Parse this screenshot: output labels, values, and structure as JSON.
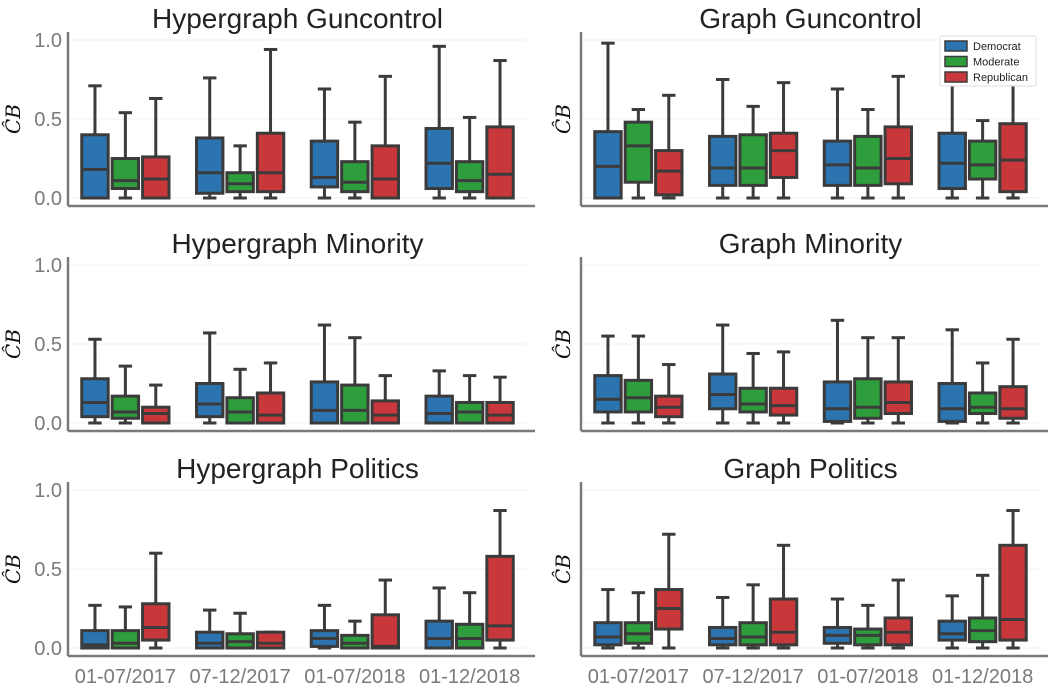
{
  "chart_data": {
    "type": "box",
    "layout": "3 rows x 2 columns, shared x and y axes",
    "y_axis": {
      "label": "ĈB",
      "ylim": [
        0,
        1.0
      ],
      "ticks": [
        "0.0",
        "0.5",
        "1.0"
      ],
      "grid": true
    },
    "x_axis": {
      "categories": [
        "01-07/2017",
        "07-12/2017",
        "01-07/2018",
        "01-12/2018"
      ]
    },
    "legend": {
      "placement": "top-right of Graph Guncontrol",
      "entries": [
        {
          "name": "Democrat",
          "color": "#2b74b0"
        },
        {
          "name": "Moderate",
          "color": "#2e9e3c"
        },
        {
          "name": "Republican",
          "color": "#c8373a"
        }
      ]
    },
    "panels": [
      {
        "title": "Hypergraph Guncontrol",
        "groups": [
          {
            "category": "01-07/2017",
            "boxes": [
              [
                0,
                0,
                0.18,
                0.4,
                0.71
              ],
              [
                0,
                0.06,
                0.11,
                0.25,
                0.54
              ],
              [
                0,
                0,
                0.12,
                0.26,
                0.63
              ]
            ]
          },
          {
            "category": "07-12/2017",
            "boxes": [
              [
                0,
                0.03,
                0.16,
                0.38,
                0.76
              ],
              [
                0,
                0.04,
                0.09,
                0.16,
                0.33
              ],
              [
                0,
                0.04,
                0.16,
                0.41,
                0.94
              ]
            ]
          },
          {
            "category": "01-07/2018",
            "boxes": [
              [
                0,
                0.07,
                0.13,
                0.36,
                0.69
              ],
              [
                0,
                0.04,
                0.1,
                0.23,
                0.48
              ],
              [
                0,
                0,
                0.12,
                0.33,
                0.77
              ]
            ]
          },
          {
            "category": "01-12/2018",
            "boxes": [
              [
                0,
                0.06,
                0.22,
                0.44,
                0.96
              ],
              [
                0,
                0.04,
                0.11,
                0.23,
                0.51
              ],
              [
                0,
                0,
                0.15,
                0.45,
                0.87
              ]
            ]
          }
        ]
      },
      {
        "title": "Graph Guncontrol",
        "groups": [
          {
            "category": "01-07/2017",
            "boxes": [
              [
                0,
                0,
                0.2,
                0.42,
                0.98
              ],
              [
                0,
                0.1,
                0.33,
                0.48,
                0.56
              ],
              [
                0,
                0.02,
                0.17,
                0.3,
                0.65
              ]
            ]
          },
          {
            "category": "07-12/2017",
            "boxes": [
              [
                0,
                0.08,
                0.19,
                0.39,
                0.75
              ],
              [
                0,
                0.08,
                0.19,
                0.4,
                0.58
              ],
              [
                0,
                0.13,
                0.3,
                0.41,
                0.73
              ]
            ]
          },
          {
            "category": "01-07/2018",
            "boxes": [
              [
                0,
                0.08,
                0.21,
                0.36,
                0.69
              ],
              [
                0,
                0.08,
                0.19,
                0.39,
                0.56
              ],
              [
                0,
                0.09,
                0.25,
                0.45,
                0.77
              ]
            ]
          },
          {
            "category": "01-12/2018",
            "boxes": [
              [
                0,
                0.06,
                0.22,
                0.41,
                0.96
              ],
              [
                0,
                0.12,
                0.21,
                0.36,
                0.49
              ],
              [
                0,
                0.04,
                0.24,
                0.47,
                0.97
              ]
            ]
          }
        ]
      },
      {
        "title": "Hypergraph Minority",
        "groups": [
          {
            "category": "01-07/2017",
            "boxes": [
              [
                0,
                0.04,
                0.13,
                0.28,
                0.53
              ],
              [
                0,
                0.03,
                0.07,
                0.17,
                0.36
              ],
              [
                0,
                0,
                0.06,
                0.1,
                0.24
              ]
            ]
          },
          {
            "category": "07-12/2017",
            "boxes": [
              [
                0,
                0.04,
                0.12,
                0.25,
                0.57
              ],
              [
                0,
                0,
                0.07,
                0.16,
                0.34
              ],
              [
                0,
                0,
                0.05,
                0.19,
                0.38
              ]
            ]
          },
          {
            "category": "01-07/2018",
            "boxes": [
              [
                0,
                0,
                0.08,
                0.26,
                0.62
              ],
              [
                0,
                0,
                0.08,
                0.24,
                0.54
              ],
              [
                0,
                0,
                0.05,
                0.14,
                0.3
              ]
            ]
          },
          {
            "category": "01-12/2018",
            "boxes": [
              [
                0,
                0,
                0.06,
                0.17,
                0.33
              ],
              [
                0,
                0,
                0.07,
                0.13,
                0.3
              ],
              [
                0,
                0,
                0.05,
                0.13,
                0.29
              ]
            ]
          }
        ]
      },
      {
        "title": "Graph Minority",
        "groups": [
          {
            "category": "01-07/2017",
            "boxes": [
              [
                0,
                0.07,
                0.15,
                0.3,
                0.55
              ],
              [
                0,
                0.07,
                0.16,
                0.27,
                0.55
              ],
              [
                0,
                0.04,
                0.1,
                0.17,
                0.37
              ]
            ]
          },
          {
            "category": "07-12/2017",
            "boxes": [
              [
                0,
                0.09,
                0.18,
                0.31,
                0.62
              ],
              [
                0,
                0.07,
                0.12,
                0.22,
                0.44
              ],
              [
                0,
                0.05,
                0.11,
                0.22,
                0.45
              ]
            ]
          },
          {
            "category": "01-07/2018",
            "boxes": [
              [
                0,
                0.01,
                0.09,
                0.26,
                0.65
              ],
              [
                0,
                0.03,
                0.1,
                0.28,
                0.54
              ],
              [
                0,
                0.06,
                0.13,
                0.26,
                0.54
              ]
            ]
          },
          {
            "category": "01-12/2018",
            "boxes": [
              [
                0,
                0.01,
                0.09,
                0.25,
                0.59
              ],
              [
                0,
                0.06,
                0.1,
                0.19,
                0.38
              ],
              [
                0,
                0.03,
                0.09,
                0.23,
                0.53
              ]
            ]
          }
        ]
      },
      {
        "title": "Hypergraph Politics",
        "groups": [
          {
            "category": "01-07/2017",
            "boxes": [
              [
                0,
                0,
                0.02,
                0.11,
                0.27
              ],
              [
                0,
                0,
                0.03,
                0.11,
                0.26
              ],
              [
                0,
                0.05,
                0.13,
                0.28,
                0.6
              ]
            ]
          },
          {
            "category": "07-12/2017",
            "boxes": [
              [
                0,
                0,
                0.03,
                0.1,
                0.24
              ],
              [
                0,
                0,
                0.04,
                0.09,
                0.22
              ],
              [
                0,
                0,
                0.03,
                0.1,
                0.1
              ]
            ]
          },
          {
            "category": "01-07/2018",
            "boxes": [
              [
                0,
                0.01,
                0.06,
                0.11,
                0.27
              ],
              [
                0,
                0,
                0.03,
                0.08,
                0.17
              ],
              [
                0,
                0,
                0.01,
                0.21,
                0.43
              ]
            ]
          },
          {
            "category": "01-12/2018",
            "boxes": [
              [
                0,
                0,
                0.06,
                0.17,
                0.38
              ],
              [
                0,
                0,
                0.06,
                0.15,
                0.35
              ],
              [
                0,
                0.05,
                0.14,
                0.58,
                0.87
              ]
            ]
          }
        ]
      },
      {
        "title": "Graph Politics",
        "groups": [
          {
            "category": "01-07/2017",
            "boxes": [
              [
                0,
                0.02,
                0.07,
                0.16,
                0.37
              ],
              [
                0,
                0.03,
                0.09,
                0.16,
                0.35
              ],
              [
                0,
                0.12,
                0.25,
                0.37,
                0.72
              ]
            ]
          },
          {
            "category": "07-12/2017",
            "boxes": [
              [
                0,
                0.02,
                0.06,
                0.13,
                0.32
              ],
              [
                0,
                0.02,
                0.07,
                0.16,
                0.4
              ],
              [
                0,
                0.02,
                0.1,
                0.31,
                0.65
              ]
            ]
          },
          {
            "category": "01-07/2018",
            "boxes": [
              [
                0,
                0.03,
                0.08,
                0.13,
                0.31
              ],
              [
                0,
                0.02,
                0.08,
                0.12,
                0.27
              ],
              [
                0,
                0.02,
                0.1,
                0.19,
                0.43
              ]
            ]
          },
          {
            "category": "01-12/2018",
            "boxes": [
              [
                0,
                0.05,
                0.09,
                0.17,
                0.33
              ],
              [
                0,
                0.04,
                0.11,
                0.19,
                0.46
              ],
              [
                0,
                0.05,
                0.18,
                0.65,
                0.87
              ]
            ]
          }
        ]
      }
    ]
  }
}
